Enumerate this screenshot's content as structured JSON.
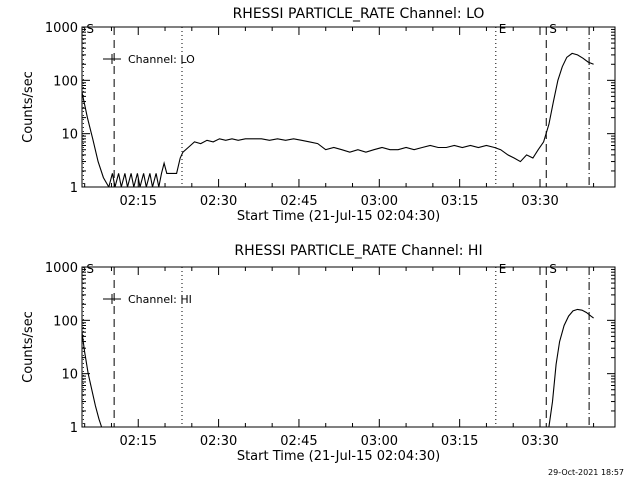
{
  "footer": {
    "timestamp": "29-Oct-2021 18:57"
  },
  "chart_data": [
    {
      "type": "line",
      "title": "RHESSI PARTICLE_RATE Channel: LO",
      "xlabel": "Start Time (21-Jul-15 02:04:30)",
      "ylabel": "Counts/sec",
      "y_scale": "log",
      "ylim": [
        1,
        1000
      ],
      "xlim": [
        "02:04:30",
        "03:44:00"
      ],
      "x_ticks": [
        "02:15",
        "02:30",
        "02:45",
        "03:00",
        "03:15",
        "03:30"
      ],
      "y_ticks": [
        "1",
        "10",
        "100",
        "1000"
      ],
      "legend": {
        "label": "Channel: LO",
        "placement": "top-left"
      },
      "markers": [
        {
          "label": "S",
          "time": "02:04:45",
          "style": "dotted"
        },
        {
          "label": "",
          "time": "02:10:30",
          "style": "dashed"
        },
        {
          "label": "",
          "time": "02:23:10",
          "style": "dotted"
        },
        {
          "label": "E",
          "time": "03:21:45",
          "style": "dotted"
        },
        {
          "label": "S",
          "time": "03:31:10",
          "style": "dashed"
        },
        {
          "label": "",
          "time": "03:39:10",
          "style": "dash-dot"
        }
      ],
      "series": [
        {
          "name": "Channel: LO",
          "x": [
            "02:04:30",
            "02:05:30",
            "02:06:30",
            "02:07:30",
            "02:08:30",
            "02:09:30",
            "02:10:10",
            "02:10:40",
            "02:11:20",
            "02:11:50",
            "02:12:30",
            "02:13:00",
            "02:13:40",
            "02:14:10",
            "02:14:50",
            "02:15:20",
            "02:16:00",
            "02:16:30",
            "02:17:10",
            "02:17:40",
            "02:18:20",
            "02:18:50",
            "02:19:20",
            "02:19:50",
            "02:20:20",
            "02:21:00",
            "02:22:10",
            "02:22:50",
            "02:23:20",
            "02:24:20",
            "02:25:30",
            "02:26:40",
            "02:27:50",
            "02:29:00",
            "02:30:10",
            "02:31:20",
            "02:32:30",
            "02:33:40",
            "02:35:00",
            "02:36:30",
            "02:38:00",
            "02:39:30",
            "02:41:00",
            "02:42:30",
            "02:44:00",
            "02:45:30",
            "02:47:00",
            "02:48:30",
            "02:50:00",
            "02:51:30",
            "02:53:00",
            "02:54:30",
            "02:56:00",
            "02:57:30",
            "02:59:00",
            "03:00:30",
            "03:02:00",
            "03:03:30",
            "03:05:00",
            "03:06:30",
            "03:08:00",
            "03:09:30",
            "03:11:00",
            "03:12:30",
            "03:14:00",
            "03:15:30",
            "03:17:00",
            "03:18:30",
            "03:20:00",
            "03:21:30",
            "03:22:40",
            "03:24:00",
            "03:25:10",
            "03:26:20",
            "03:27:30",
            "03:28:40",
            "03:29:40",
            "03:30:40",
            "03:31:40",
            "03:32:30",
            "03:33:20",
            "03:34:10",
            "03:35:00",
            "03:36:00",
            "03:37:00",
            "03:38:00",
            "03:39:00",
            "03:40:00"
          ],
          "y": [
            60,
            20,
            8,
            3,
            1.5,
            1,
            1.8,
            1,
            1.8,
            1,
            1.8,
            1,
            1.8,
            1,
            1.8,
            1,
            1.8,
            1,
            1.8,
            1,
            1.8,
            1,
            1.8,
            2.8,
            1.8,
            1.8,
            1.8,
            3.5,
            4.5,
            5.5,
            7,
            6.5,
            7.5,
            7,
            8,
            7.5,
            8,
            7.5,
            8,
            8,
            8,
            7.5,
            8,
            7.5,
            8,
            7.5,
            7,
            6.5,
            5,
            5.5,
            5,
            4.5,
            5,
            4.5,
            5,
            5.5,
            5,
            5,
            5.5,
            5,
            5.5,
            6,
            5.5,
            5.5,
            6,
            5.5,
            6,
            5.5,
            6,
            5.5,
            5,
            4,
            3.5,
            3,
            4,
            3.5,
            5,
            7,
            15,
            40,
            100,
            180,
            270,
            320,
            300,
            260,
            220,
            200
          ]
        }
      ]
    },
    {
      "type": "line",
      "title": "RHESSI PARTICLE_RATE Channel: HI",
      "xlabel": "Start Time (21-Jul-15 02:04:30)",
      "ylabel": "Counts/sec",
      "y_scale": "log",
      "ylim": [
        1,
        1000
      ],
      "xlim": [
        "02:04:30",
        "03:44:00"
      ],
      "x_ticks": [
        "02:15",
        "02:30",
        "02:45",
        "03:00",
        "03:15",
        "03:30"
      ],
      "y_ticks": [
        "1",
        "10",
        "100",
        "1000"
      ],
      "legend": {
        "label": "Channel: HI",
        "placement": "top-left"
      },
      "markers": [
        {
          "label": "S",
          "time": "02:04:45",
          "style": "dotted"
        },
        {
          "label": "",
          "time": "02:10:30",
          "style": "dashed"
        },
        {
          "label": "",
          "time": "02:23:10",
          "style": "dotted"
        },
        {
          "label": "E",
          "time": "03:21:45",
          "style": "dotted"
        },
        {
          "label": "S",
          "time": "03:31:10",
          "style": "dashed"
        },
        {
          "label": "",
          "time": "03:39:10",
          "style": "dash-dot"
        }
      ],
      "series": [
        {
          "name": "Channel: HI",
          "x": [
            "02:04:30",
            "02:05:00",
            "02:05:40",
            "02:06:20",
            "02:07:00",
            "02:07:40",
            "02:08:10",
            "03:31:40",
            "03:32:20",
            "03:33:00",
            "03:33:40",
            "03:34:30",
            "03:35:20",
            "03:36:10",
            "03:37:00",
            "03:37:50",
            "03:38:40",
            "03:39:30",
            "03:40:00"
          ],
          "y": [
            60,
            25,
            10,
            5,
            2.5,
            1.4,
            1,
            1,
            3,
            15,
            40,
            80,
            120,
            150,
            160,
            155,
            140,
            120,
            110
          ]
        }
      ]
    }
  ]
}
